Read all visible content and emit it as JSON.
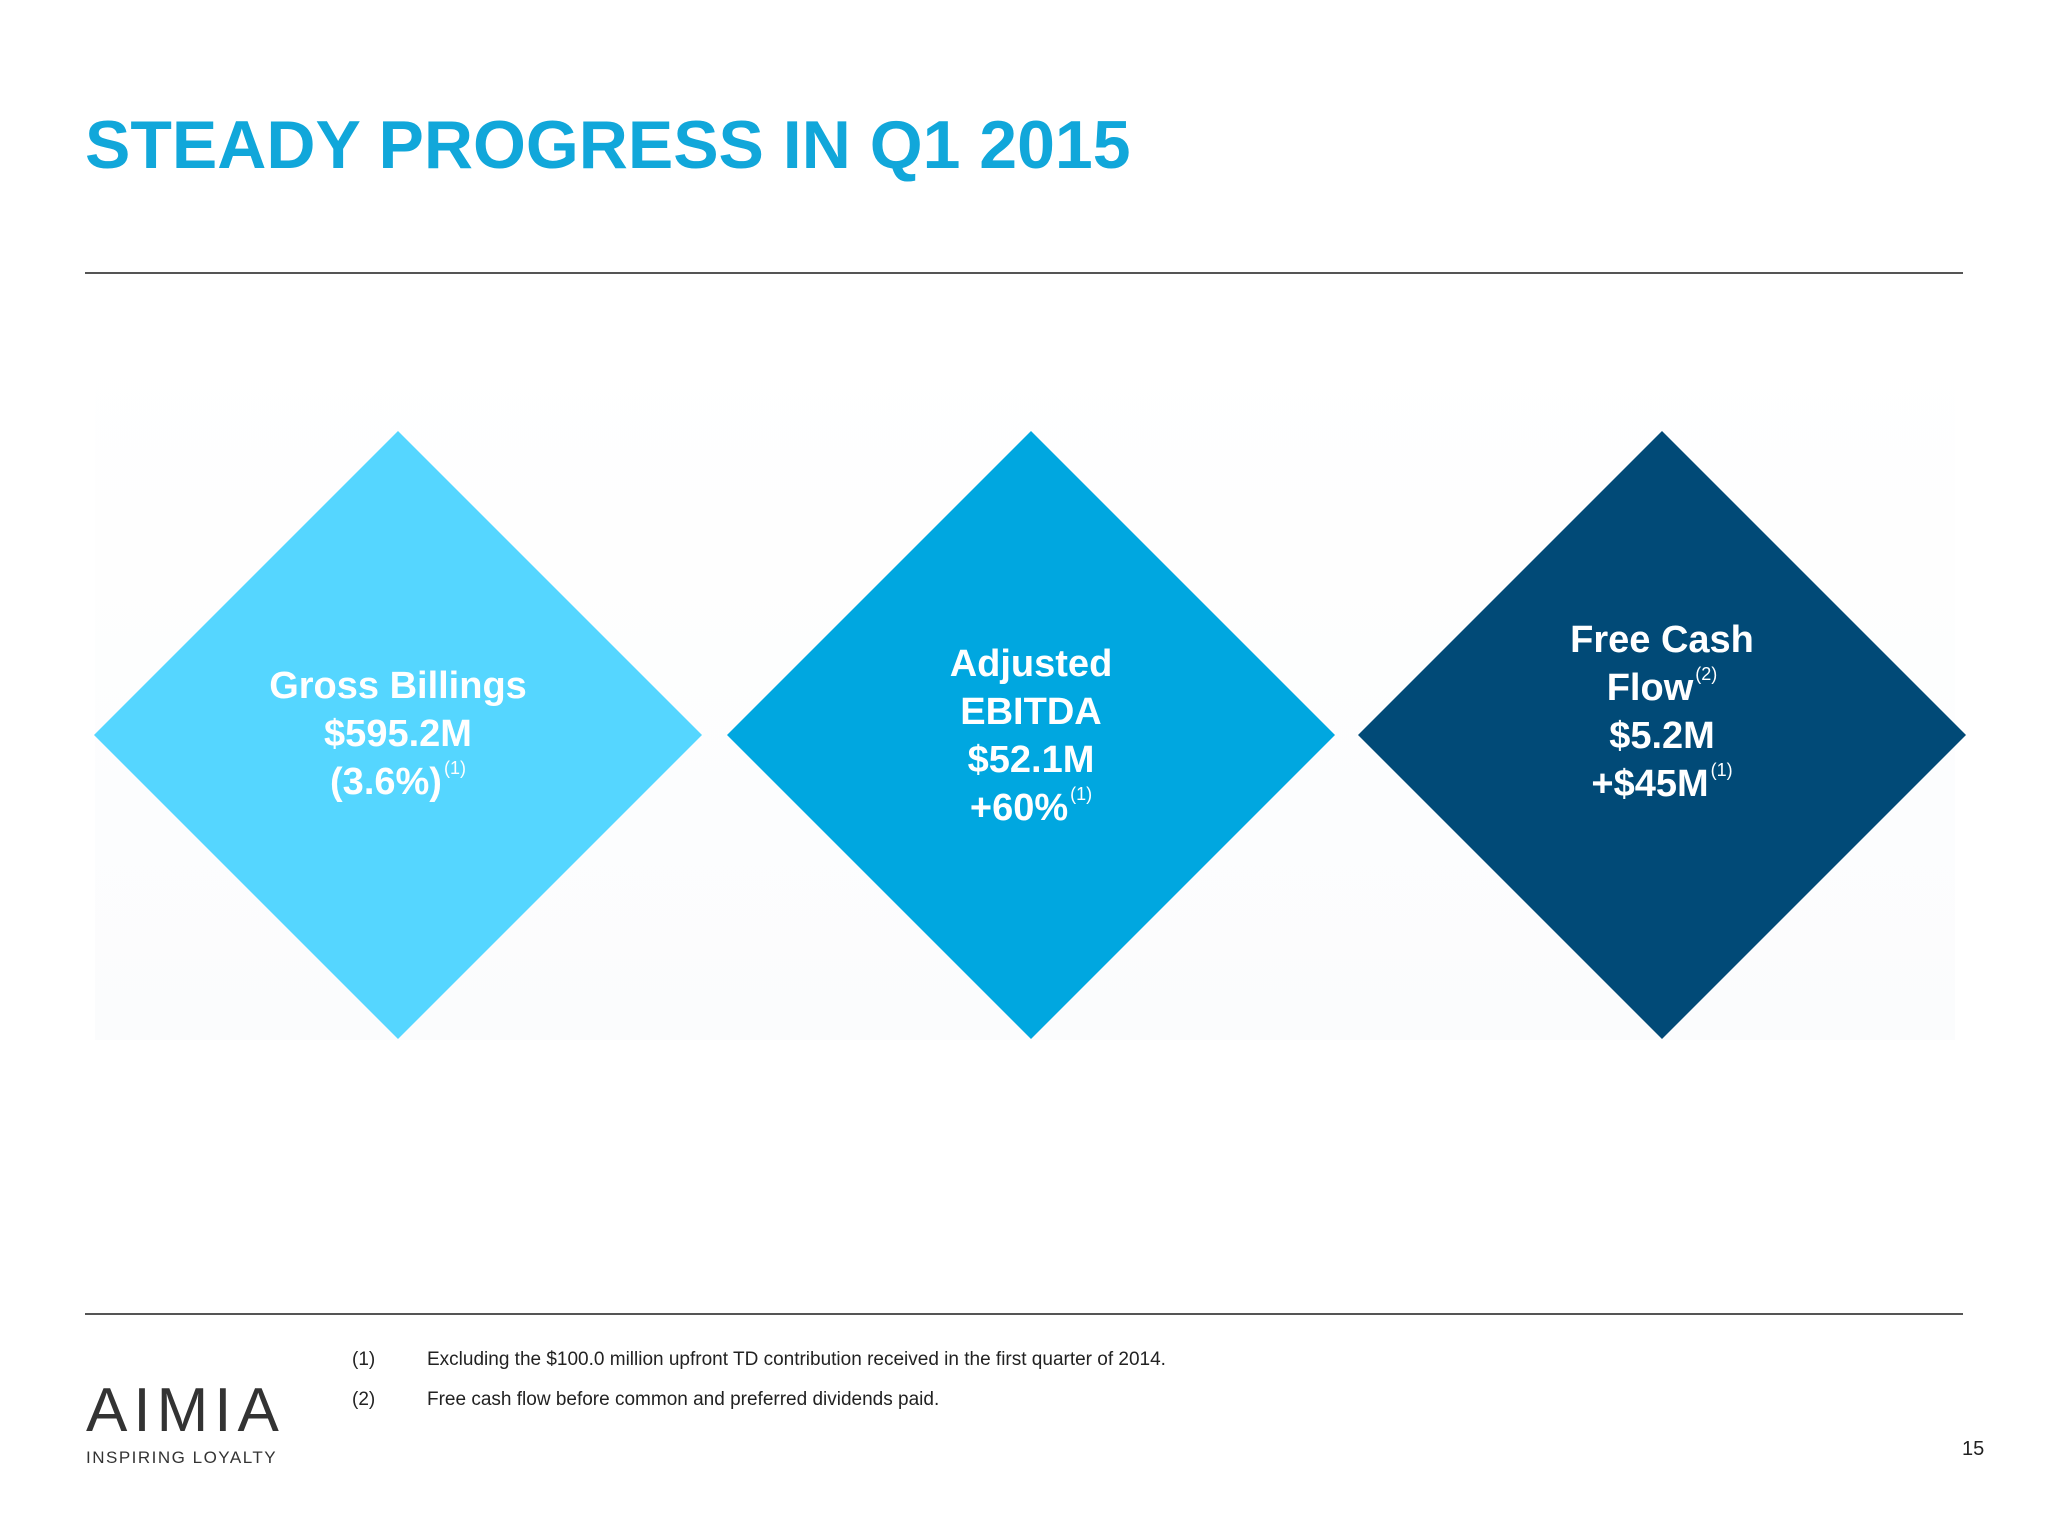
{
  "slide": {
    "title": "STEADY PROGRESS IN Q1 2015",
    "page_number": "15"
  },
  "colors": {
    "title": "#11A7DA",
    "diamond_light": "#55D6FF",
    "diamond_mid": "#00A7E0",
    "diamond_dark": "#014A77"
  },
  "metrics": [
    {
      "lines": [
        "Gross Billings",
        "$595.2M",
        "(3.6%)"
      ],
      "footnote_ref": "(1)"
    },
    {
      "lines": [
        "Adjusted",
        "EBITDA",
        "$52.1M",
        "+60%"
      ],
      "footnote_ref": "(1)"
    },
    {
      "lines": [
        "Free Cash",
        "Flow",
        "$5.2M",
        "+$45M"
      ],
      "flow_ref": "(2)",
      "footnote_ref": "(1)"
    }
  ],
  "footnotes": [
    {
      "num": "(1)",
      "text": "Excluding the $100.0 million upfront TD contribution received in the first quarter of 2014."
    },
    {
      "num": "(2)",
      "text": "Free cash flow before common and preferred dividends paid."
    }
  ],
  "logo": {
    "wordmark": "AIMIA",
    "tagline": "INSPIRING LOYALTY"
  }
}
